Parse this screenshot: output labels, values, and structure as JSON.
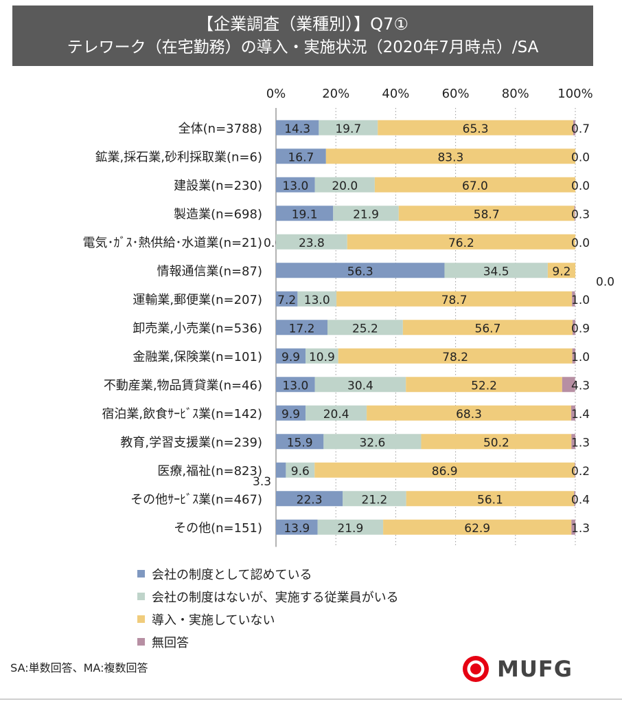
{
  "title_line1": "【企業調査（業種別）】Q7①",
  "title_line2": "テレワーク（在宅勤務）の導入・実施状況（2020年7月時点）/SA",
  "chart_data": {
    "type": "bar",
    "orientation": "horizontal",
    "stacked": true,
    "x_ticks": [
      "0%",
      "20%",
      "40%",
      "60%",
      "80%",
      "100%"
    ],
    "xlim": [
      0,
      100
    ],
    "categories": [
      "全体(n=3788)",
      "鉱業,採石業,砂利採取業(n=6)",
      "建設業(n=230)",
      "製造業(n=698)",
      "電気･ｶﾞｽ･熱供給･水道業(n=21)",
      "情報通信業(n=87)",
      "運輸業,郵便業(n=207)",
      "卸売業,小売業(n=536)",
      "金融業,保険業(n=101)",
      "不動産業,物品賃貸業(n=46)",
      "宿泊業,飲食ｻｰﾋﾞｽ業(n=142)",
      "教育,学習支援業(n=239)",
      "医療,福祉(n=823)",
      "その他ｻｰﾋﾞｽ業(n=467)",
      "その他(n=151)"
    ],
    "series": [
      {
        "name": "会社の制度として認めている",
        "color": "#7f98c0",
        "values": [
          14.3,
          16.7,
          13.0,
          19.1,
          0.0,
          56.3,
          7.2,
          17.2,
          9.9,
          13.0,
          9.9,
          15.9,
          3.3,
          22.3,
          13.9
        ]
      },
      {
        "name": "会社の制度はないが、実施する従業員がいる",
        "color": "#bfd4ca",
        "values": [
          19.7,
          0.0,
          20.0,
          21.9,
          23.8,
          34.5,
          13.0,
          25.2,
          10.9,
          30.4,
          20.4,
          32.6,
          9.6,
          21.2,
          21.9
        ]
      },
      {
        "name": "導入・実施していない",
        "color": "#f0cc7c",
        "values": [
          65.3,
          83.3,
          67.0,
          58.7,
          76.2,
          9.2,
          78.7,
          56.7,
          78.2,
          52.2,
          68.3,
          50.2,
          86.9,
          56.1,
          62.9
        ]
      },
      {
        "name": "無回答",
        "color": "#b78fa3",
        "values": [
          0.7,
          0.0,
          0.0,
          0.3,
          0.0,
          0.0,
          1.0,
          0.9,
          1.0,
          4.3,
          1.4,
          1.3,
          0.2,
          0.4,
          1.3
        ]
      }
    ],
    "value_labels": [
      [
        "14.3",
        "19.7",
        "65.3",
        "0.7"
      ],
      [
        "16.7",
        "0.0",
        "83.3",
        "0.0"
      ],
      [
        "13.0",
        "20.0",
        "67.0",
        "0.0"
      ],
      [
        "19.1",
        "21.9",
        "58.7",
        "0.3"
      ],
      [
        "0.0",
        "23.8",
        "76.2",
        "0.0"
      ],
      [
        "56.3",
        "34.5",
        "9.2",
        "0.0"
      ],
      [
        "7.2",
        "13.0",
        "78.7",
        "1.0"
      ],
      [
        "17.2",
        "25.2",
        "56.7",
        "0.9"
      ],
      [
        "9.9",
        "10.9",
        "78.2",
        "1.0"
      ],
      [
        "13.0",
        "30.4",
        "52.2",
        "4.3"
      ],
      [
        "9.9",
        "20.4",
        "68.3",
        "1.4"
      ],
      [
        "15.9",
        "32.6",
        "50.2",
        "1.3"
      ],
      [
        "3.3",
        "9.6",
        "86.9",
        "0.2"
      ],
      [
        "22.3",
        "21.2",
        "56.1",
        "0.4"
      ],
      [
        "13.9",
        "21.9",
        "62.9",
        "1.3"
      ]
    ],
    "legend_position": "bottom",
    "grid": "vertical-dotted"
  },
  "footnote": "SA:単数回答、MA:複数回答",
  "logo": {
    "text": "MUFG",
    "color": "#e60012"
  }
}
